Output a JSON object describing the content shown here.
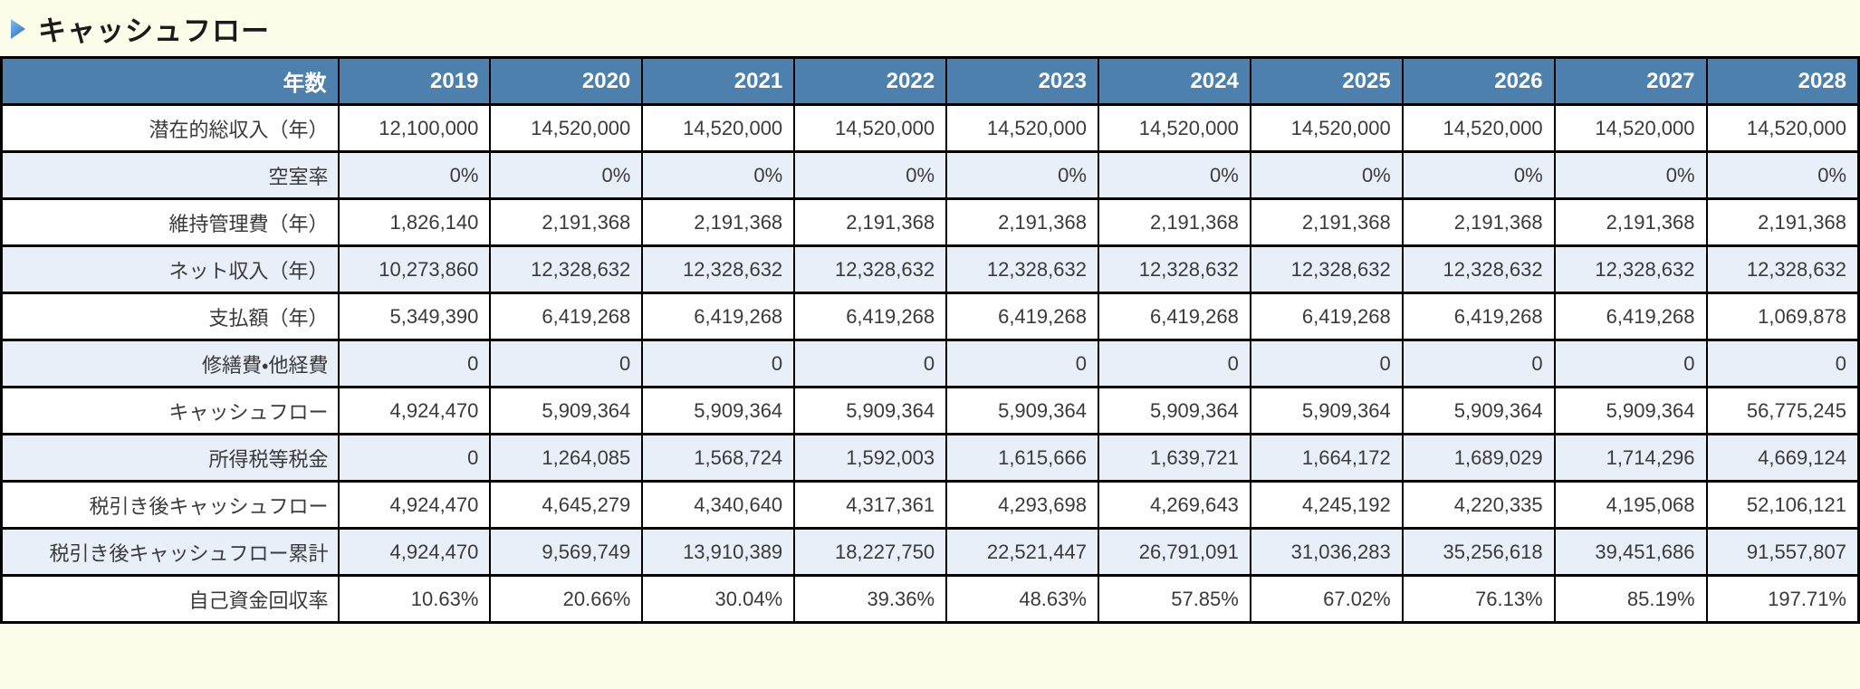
{
  "page": {
    "background": "#FDFDE9",
    "text_color": "#3A3A3A",
    "border_color": "#000000"
  },
  "title": {
    "text": "キャッシュフロー",
    "marker_icon": "blue-play-triangle-icon",
    "marker_gradient_top": "#8AC0EE",
    "marker_gradient_bottom": "#2F77C0"
  },
  "table": {
    "header": {
      "row_label": "年数",
      "years": [
        "2019",
        "2020",
        "2021",
        "2022",
        "2023",
        "2024",
        "2025",
        "2026",
        "2027",
        "2028"
      ],
      "background_color": "#4E80AE",
      "text_color": "#FFFFFF"
    },
    "alt_row_color": "#E9EFF9",
    "rows": [
      {
        "key": "potential-gross-income",
        "label": "潜在的総収入（年）",
        "values": [
          "12,100,000",
          "14,520,000",
          "14,520,000",
          "14,520,000",
          "14,520,000",
          "14,520,000",
          "14,520,000",
          "14,520,000",
          "14,520,000",
          "14,520,000"
        ]
      },
      {
        "key": "vacancy-rate",
        "label": "空室率",
        "values": [
          "0%",
          "0%",
          "0%",
          "0%",
          "0%",
          "0%",
          "0%",
          "0%",
          "0%",
          "0%"
        ]
      },
      {
        "key": "maintenance-cost",
        "label": "維持管理費（年）",
        "values": [
          "1,826,140",
          "2,191,368",
          "2,191,368",
          "2,191,368",
          "2,191,368",
          "2,191,368",
          "2,191,368",
          "2,191,368",
          "2,191,368",
          "2,191,368"
        ]
      },
      {
        "key": "net-income",
        "label": "ネット収入（年）",
        "values": [
          "10,273,860",
          "12,328,632",
          "12,328,632",
          "12,328,632",
          "12,328,632",
          "12,328,632",
          "12,328,632",
          "12,328,632",
          "12,328,632",
          "12,328,632"
        ]
      },
      {
        "key": "annual-payment",
        "label": "支払額（年）",
        "values": [
          "5,349,390",
          "6,419,268",
          "6,419,268",
          "6,419,268",
          "6,419,268",
          "6,419,268",
          "6,419,268",
          "6,419,268",
          "6,419,268",
          "1,069,878"
        ]
      },
      {
        "key": "repair-other-expenses",
        "label": "修繕費・他経費",
        "values": [
          "0",
          "0",
          "0",
          "0",
          "0",
          "0",
          "0",
          "0",
          "0",
          "0"
        ]
      },
      {
        "key": "cash-flow",
        "label": "キャッシュフロー",
        "values": [
          "4,924,470",
          "5,909,364",
          "5,909,364",
          "5,909,364",
          "5,909,364",
          "5,909,364",
          "5,909,364",
          "5,909,364",
          "5,909,364",
          "56,775,245"
        ]
      },
      {
        "key": "income-tax",
        "label": "所得税等税金",
        "values": [
          "0",
          "1,264,085",
          "1,568,724",
          "1,592,003",
          "1,615,666",
          "1,639,721",
          "1,664,172",
          "1,689,029",
          "1,714,296",
          "4,669,124"
        ]
      },
      {
        "key": "after-tax-cash-flow",
        "label": "税引き後キャッシュフロー",
        "values": [
          "4,924,470",
          "4,645,279",
          "4,340,640",
          "4,317,361",
          "4,293,698",
          "4,269,643",
          "4,245,192",
          "4,220,335",
          "4,195,068",
          "52,106,121"
        ]
      },
      {
        "key": "after-tax-cash-flow-cumulative",
        "label": "税引き後キャッシュフロー累計",
        "values": [
          "4,924,470",
          "9,569,749",
          "13,910,389",
          "18,227,750",
          "22,521,447",
          "26,791,091",
          "31,036,283",
          "35,256,618",
          "39,451,686",
          "91,557,807"
        ]
      },
      {
        "key": "equity-recovery-rate",
        "label": "自己資金回収率",
        "values": [
          "10.63%",
          "20.66%",
          "30.04%",
          "39.36%",
          "48.63%",
          "57.85%",
          "67.02%",
          "76.13%",
          "85.19%",
          "197.71%"
        ]
      }
    ]
  }
}
